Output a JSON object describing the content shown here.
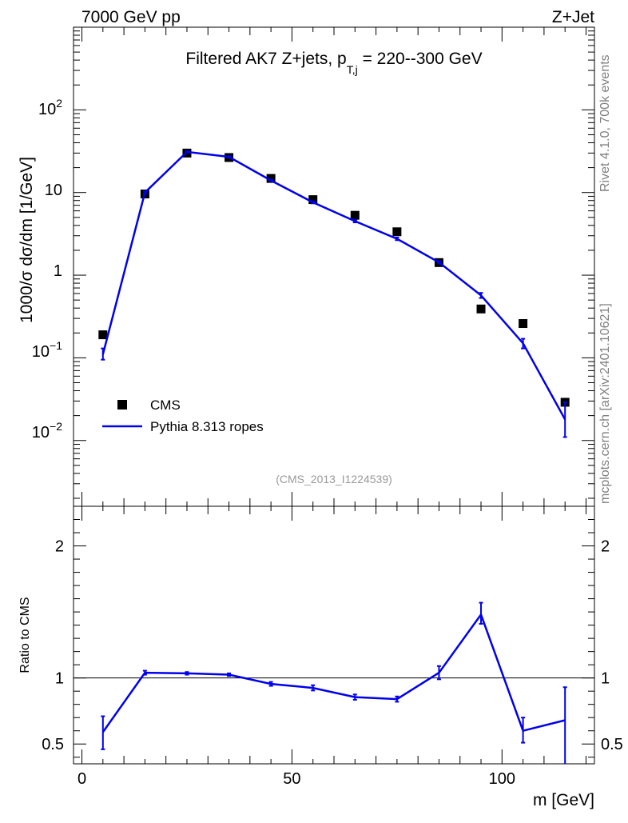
{
  "header": {
    "left": "7000 GeV pp",
    "right": "Z+Jet"
  },
  "side_labels": {
    "top": "Rivet 4.1.0,  700k events",
    "bottom": "mcplots.cern.ch [arXiv:2401.10621]"
  },
  "chart_data": [
    {
      "type": "scatter",
      "panel": "main",
      "title_main": "Filtered AK7 Z+jets, p",
      "title_sub": "T,j",
      "title_rest": " = 220--300 GeV",
      "ylabel": "1000/σ  dσ/dm [1/GeV]",
      "yscale": "log",
      "ylim": [
        0.0016,
        1000
      ],
      "xlim": [
        -2,
        122
      ],
      "analysis_id": "(CMS_2013_I1224539)",
      "ytick_labels": [
        "10",
        "10",
        "1",
        "10",
        "10"
      ],
      "ytick_exponents": [
        "2",
        "",
        "",
        "−1",
        "−2"
      ],
      "series": [
        {
          "name": "CMS",
          "style": "markers",
          "color": "#000000",
          "x": [
            5,
            15,
            25,
            35,
            45,
            55,
            65,
            75,
            85,
            95,
            105,
            115
          ],
          "y": [
            0.19,
            9.6,
            30.0,
            26.5,
            14.8,
            8.2,
            5.3,
            3.35,
            1.42,
            0.39,
            0.26,
            0.029
          ]
        },
        {
          "name": "Pythia 8.313 ropes",
          "style": "line",
          "color": "#0000ee",
          "x": [
            5,
            15,
            25,
            35,
            45,
            55,
            65,
            75,
            85,
            95,
            105,
            115
          ],
          "y": [
            0.11,
            10.0,
            31.0,
            27.0,
            14.0,
            7.6,
            4.5,
            2.75,
            1.43,
            0.57,
            0.15,
            0.018
          ],
          "err_low": [
            0.095,
            9.7,
            30.3,
            26.5,
            13.7,
            7.4,
            4.35,
            2.65,
            1.38,
            0.53,
            0.13,
            0.011
          ],
          "err_high": [
            0.13,
            10.3,
            31.7,
            27.5,
            14.3,
            7.8,
            4.65,
            2.85,
            1.48,
            0.61,
            0.17,
            0.029
          ]
        }
      ],
      "legend": {
        "position": "bottom-left"
      }
    },
    {
      "type": "line",
      "panel": "ratio",
      "ylabel": "Ratio to CMS",
      "xlabel": "m [GeV]",
      "ylim": [
        0.35,
        2.3
      ],
      "xlim": [
        -2,
        122
      ],
      "yticks": [
        0.5,
        1,
        2
      ],
      "ytick_labels": [
        "0.5",
        "1",
        "2"
      ],
      "xticks": [
        0,
        50,
        100
      ],
      "xtick_labels": [
        "0",
        "50",
        "100"
      ],
      "reference": 1.0,
      "series": [
        {
          "name": "Pythia 8.313 ropes",
          "color": "#0000ee",
          "x": [
            5,
            15,
            25,
            35,
            45,
            55,
            65,
            75,
            85,
            95,
            105,
            115
          ],
          "y": [
            0.59,
            1.04,
            1.035,
            1.025,
            0.955,
            0.925,
            0.855,
            0.84,
            1.04,
            1.48,
            0.6,
            0.68
          ],
          "err_low": [
            0.46,
            1.025,
            1.025,
            1.015,
            0.94,
            0.905,
            0.835,
            0.82,
            0.99,
            1.41,
            0.51,
            0.3
          ],
          "err_high": [
            0.71,
            1.055,
            1.045,
            1.035,
            0.97,
            0.945,
            0.875,
            0.86,
            1.09,
            1.57,
            0.7,
            0.93
          ]
        }
      ]
    }
  ]
}
